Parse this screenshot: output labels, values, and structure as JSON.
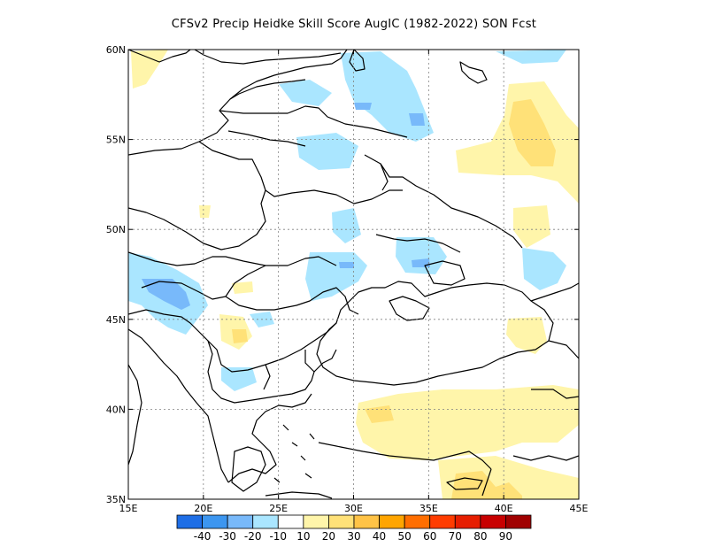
{
  "title": "CFSv2 Precip Heidke Skill Score AugIC (1982-2022) SON Fcst",
  "map": {
    "lon_range": [
      15,
      45
    ],
    "lat_range": [
      35,
      60
    ],
    "x_ticks": [
      "15E",
      "20E",
      "25E",
      "30E",
      "35E",
      "40E",
      "45E"
    ],
    "y_ticks": [
      "35N",
      "40N",
      "45N",
      "50N",
      "55N",
      "60N"
    ],
    "grid": "dotted"
  },
  "colorbar": {
    "colors": [
      "#1e6ee6",
      "#3c96f0",
      "#78b9fa",
      "#aae6ff",
      "#ffffff",
      "#fff5aa",
      "#ffe178",
      "#ffc346",
      "#ffa500",
      "#ff6e00",
      "#ff3c00",
      "#e61e00",
      "#c80000",
      "#a00000"
    ],
    "labels": [
      "-40",
      "-30",
      "-20",
      "-10",
      "10",
      "20",
      "30",
      "40",
      "50",
      "60",
      "70",
      "80",
      "90"
    ]
  },
  "colors": {
    "neg10": "#aae6ff",
    "neg20": "#78b9fa",
    "neg30": "#3c96f0",
    "pos10": "#fff5aa",
    "pos20": "#ffe178"
  }
}
